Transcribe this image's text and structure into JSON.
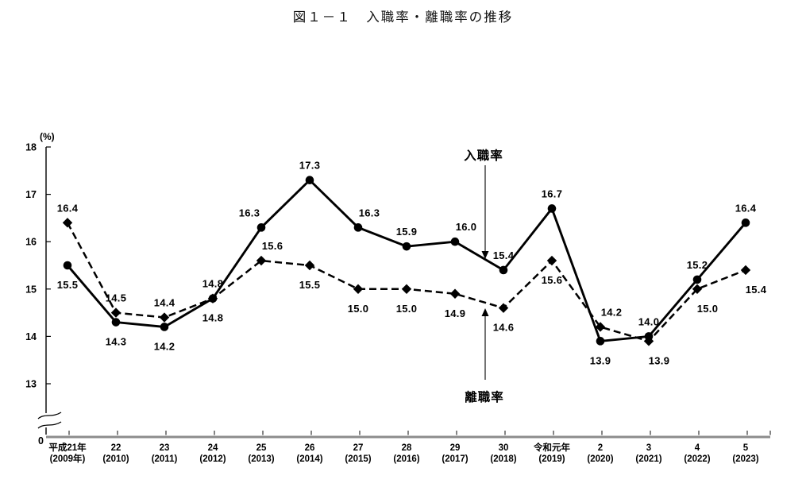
{
  "chart_data": {
    "type": "line",
    "title": "図１－１　入職率・離職率の推移",
    "unit_label": "(%)",
    "origin_label": "0",
    "ylim": [
      13,
      18
    ],
    "yticks": [
      18,
      17,
      16,
      15,
      14,
      13
    ],
    "axis_break": true,
    "grid": false,
    "legend_position": "inline-annotations",
    "colors": {
      "series_line": "#000000",
      "x_axis_line": "#8c8c8c",
      "y_axis_line": "#000000"
    },
    "categories": [
      "平成21年",
      "22",
      "23",
      "24",
      "25",
      "26",
      "27",
      "28",
      "29",
      "30",
      "令和元年",
      "2",
      "3",
      "4",
      "5"
    ],
    "categories_sub": [
      "(2009年)",
      "(2010)",
      "(2011)",
      "(2012)",
      "(2013)",
      "(2014)",
      "(2015)",
      "(2016)",
      "(2017)",
      "(2018)",
      "(2019)",
      "(2020)",
      "(2021)",
      "(2022)",
      "(2023)"
    ],
    "series": [
      {
        "name": "入職率",
        "slug": "hiring-rate",
        "line_style": "solid",
        "marker": "circle",
        "color": "#000000",
        "values": [
          15.5,
          14.3,
          14.2,
          14.8,
          16.3,
          17.3,
          16.3,
          15.9,
          16.0,
          15.4,
          16.7,
          13.9,
          14.0,
          15.2,
          16.4
        ],
        "label_pos": [
          "below",
          "below",
          "below",
          "below",
          "above-left",
          "above",
          "above-right",
          "above",
          "above-right",
          "above",
          "above",
          "below",
          "above",
          "above",
          "above"
        ]
      },
      {
        "name": "離職率",
        "slug": "separation-rate",
        "line_style": "dashed",
        "marker": "diamond",
        "color": "#000000",
        "values": [
          16.4,
          14.5,
          14.4,
          14.8,
          15.6,
          15.5,
          15.0,
          15.0,
          14.9,
          14.6,
          15.6,
          14.2,
          13.9,
          15.0,
          15.4
        ],
        "label_pos": [
          "above",
          "above",
          "above",
          "above",
          "above-right",
          "below",
          "below",
          "below",
          "below",
          "below",
          "below",
          "above-right",
          "below-right",
          "below-right",
          "below-right"
        ]
      }
    ],
    "annotations": [
      {
        "text": "入職率",
        "series": "hiring-rate",
        "direction": "down"
      },
      {
        "text": "離職率",
        "series": "separation-rate",
        "direction": "up"
      }
    ]
  }
}
